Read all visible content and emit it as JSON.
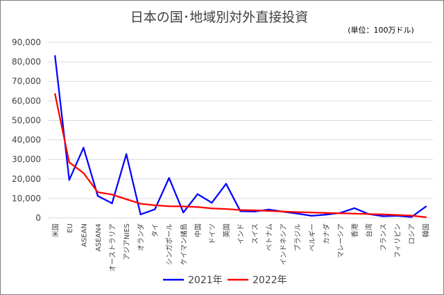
{
  "chart_data": {
    "type": "line",
    "title": "日本の国･地域別対外直接投資",
    "unit_note": "(単位：100万ドル)",
    "xlabel": "",
    "ylabel": "",
    "ylim": [
      0,
      90000
    ],
    "yticks": [
      "0",
      "10,000",
      "20,000",
      "30,000",
      "40,000",
      "50,000",
      "60,000",
      "70,000",
      "80,000",
      "90,000"
    ],
    "grid": true,
    "legend_position": "bottom",
    "categories": [
      "米国",
      "EU",
      "ASEAN",
      "ASEAN4",
      "オーストラリア",
      "アジアNIES",
      "オランダ",
      "タイ",
      "シンガポール",
      "ケイマン諸島",
      "中国",
      "ドイツ",
      "英国",
      "インド",
      "スイス",
      "ベトナム",
      "インドネシア",
      "ブラジル",
      "ベルギー",
      "カナダ",
      "マレーシア",
      "香港",
      "台湾",
      "フランス",
      "フィリピン",
      "ロシア",
      "韓国"
    ],
    "series": [
      {
        "name": "2021年",
        "color": "#0000ff",
        "values": [
          83000,
          19500,
          36000,
          11300,
          7500,
          32700,
          1800,
          4400,
          20500,
          2800,
          12200,
          7800,
          17500,
          3500,
          3300,
          4300,
          3200,
          2200,
          1100,
          1700,
          2600,
          5000,
          2000,
          900,
          1100,
          500,
          5800
        ]
      },
      {
        "name": "2022年",
        "color": "#ff0000",
        "values": [
          63500,
          28500,
          23000,
          13200,
          12000,
          9600,
          7300,
          6500,
          6000,
          5900,
          5600,
          4900,
          4600,
          4100,
          3900,
          3600,
          3300,
          3000,
          2800,
          2600,
          2400,
          2200,
          2000,
          1800,
          1500,
          1200,
          400
        ]
      }
    ]
  }
}
